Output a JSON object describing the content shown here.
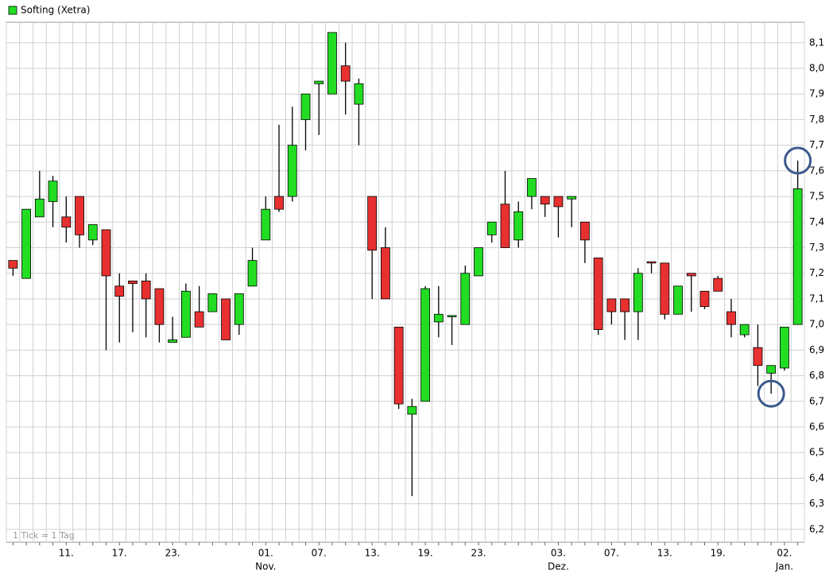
{
  "chart_data": {
    "type": "candlestick",
    "footnote": "1 Tick = 1 Tag",
    "categories": [
      "",
      "",
      "",
      "",
      "11.",
      "",
      "",
      "",
      "17.",
      "",
      "",
      "",
      "23.",
      "",
      "",
      "",
      "",
      "",
      "",
      "01.",
      "",
      "",
      "",
      "07.",
      "",
      "",
      "",
      "13.",
      "",
      "",
      "",
      "19.",
      "",
      "",
      "",
      "23.",
      "",
      "",
      "",
      "",
      "",
      "03.",
      "",
      "",
      "",
      "07.",
      "",
      "",
      "",
      "13.",
      "",
      "",
      "",
      "19.",
      "",
      "",
      "",
      "",
      "02.",
      ""
    ],
    "category_months": [
      null,
      null,
      null,
      null,
      null,
      null,
      null,
      null,
      null,
      null,
      null,
      null,
      null,
      null,
      null,
      null,
      null,
      null,
      null,
      "Nov.",
      null,
      null,
      null,
      null,
      null,
      null,
      null,
      null,
      null,
      null,
      null,
      null,
      null,
      null,
      null,
      null,
      null,
      null,
      null,
      null,
      null,
      "Dez.",
      null,
      null,
      null,
      null,
      null,
      null,
      null,
      null,
      null,
      null,
      null,
      null,
      null,
      null,
      null,
      null,
      "Jan.",
      null
    ],
    "series": [
      {
        "name": "Softing (Xetra)",
        "color": "#22dd22",
        "open": [
          7.25,
          7.18,
          7.42,
          7.48,
          7.42,
          7.5,
          7.33,
          7.37,
          7.15,
          7.17,
          7.17,
          7.14,
          6.93,
          6.95,
          7.05,
          7.05,
          7.1,
          7.0,
          7.15,
          7.33,
          7.5,
          7.5,
          7.8,
          7.94,
          7.9,
          8.01,
          7.86,
          7.5,
          7.3,
          6.99,
          6.65,
          6.7,
          7.01,
          7.03,
          7.0,
          7.19,
          7.35,
          7.47,
          7.33,
          7.5,
          7.5,
          7.5,
          7.49,
          7.4,
          7.26,
          7.1,
          7.1,
          7.05,
          7.245,
          7.24,
          7.04,
          7.2,
          7.13,
          7.18,
          7.05,
          6.96,
          6.91,
          6.81,
          6.83,
          7.0
        ],
        "high": [
          7.25,
          7.45,
          7.6,
          7.58,
          7.5,
          7.5,
          7.39,
          7.37,
          7.2,
          7.17,
          7.2,
          7.14,
          7.03,
          7.16,
          7.15,
          7.12,
          7.1,
          7.12,
          7.3,
          7.5,
          7.78,
          7.85,
          7.9,
          7.95,
          8.14,
          8.1,
          7.96,
          7.5,
          7.38,
          6.99,
          6.71,
          7.15,
          7.15,
          7.035,
          7.23,
          7.3,
          7.4,
          7.6,
          7.48,
          7.57,
          7.5,
          7.5,
          7.5,
          7.4,
          7.26,
          7.1,
          7.1,
          7.22,
          7.245,
          7.24,
          7.15,
          7.2,
          7.13,
          7.19,
          7.1,
          7.0,
          7.0,
          6.84,
          6.99,
          7.64
        ],
        "low": [
          7.19,
          7.18,
          7.42,
          7.38,
          7.32,
          7.3,
          7.31,
          6.9,
          6.93,
          6.97,
          6.95,
          6.93,
          6.93,
          6.95,
          6.99,
          7.05,
          6.94,
          6.96,
          7.15,
          7.33,
          7.44,
          7.48,
          7.68,
          7.74,
          7.9,
          7.82,
          7.7,
          7.1,
          7.1,
          6.67,
          6.33,
          6.7,
          6.95,
          6.92,
          7.0,
          7.19,
          7.32,
          7.3,
          7.3,
          7.45,
          7.42,
          7.34,
          7.38,
          7.24,
          6.96,
          7.0,
          6.94,
          6.94,
          7.2,
          7.02,
          7.04,
          7.05,
          7.06,
          7.13,
          6.95,
          6.95,
          6.76,
          6.73,
          6.82,
          7.0
        ],
        "close": [
          7.22,
          7.45,
          7.49,
          7.56,
          7.38,
          7.35,
          7.39,
          7.19,
          7.11,
          7.16,
          7.1,
          7.0,
          6.94,
          7.13,
          6.99,
          7.12,
          6.94,
          7.12,
          7.25,
          7.45,
          7.45,
          7.7,
          7.9,
          7.95,
          8.14,
          7.95,
          7.94,
          7.29,
          7.1,
          6.69,
          6.68,
          7.14,
          7.04,
          7.035,
          7.2,
          7.3,
          7.4,
          7.3,
          7.44,
          7.57,
          7.47,
          7.46,
          7.5,
          7.33,
          6.98,
          7.05,
          7.05,
          7.2,
          7.24,
          7.04,
          7.15,
          7.19,
          7.07,
          7.13,
          7.0,
          7.0,
          6.84,
          6.84,
          6.99,
          7.53
        ]
      }
    ],
    "up_color": "#22dd22",
    "down_color": "#e83030",
    "ylim": [
      6.15,
      8.18
    ],
    "yticks": [
      {
        "value": 6.2,
        "label": "6,2"
      },
      {
        "value": 6.3,
        "label": "6,3"
      },
      {
        "value": 6.4,
        "label": "6,4"
      },
      {
        "value": 6.5,
        "label": "6,5"
      },
      {
        "value": 6.6,
        "label": "6,6"
      },
      {
        "value": 6.7,
        "label": "6,7"
      },
      {
        "value": 6.8,
        "label": "6,8"
      },
      {
        "value": 6.9,
        "label": "6,9"
      },
      {
        "value": 7.0,
        "label": "7,0"
      },
      {
        "value": 7.1,
        "label": "7,1"
      },
      {
        "value": 7.2,
        "label": "7,2"
      },
      {
        "value": 7.3,
        "label": "7,3"
      },
      {
        "value": 7.4,
        "label": "7,4"
      },
      {
        "value": 7.5,
        "label": "7,5"
      },
      {
        "value": 7.6,
        "label": "7,6"
      },
      {
        "value": 7.7,
        "label": "7,7"
      },
      {
        "value": 7.8,
        "label": "7,8"
      },
      {
        "value": 7.9,
        "label": "7,9"
      },
      {
        "value": 8.0,
        "label": "8,0"
      },
      {
        "value": 8.1,
        "label": "8,1"
      }
    ],
    "grid": true
  }
}
